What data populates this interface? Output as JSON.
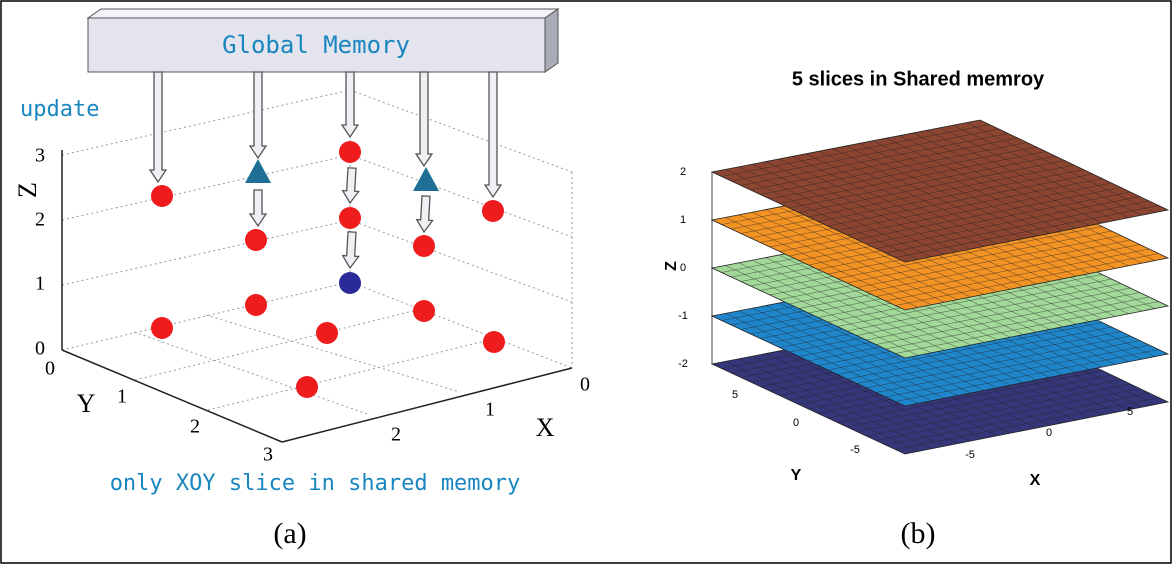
{
  "panel_a": {
    "header": "Global Memory",
    "update_label": "update",
    "caption_text": "only XOY slice in shared memory",
    "label": "(a)",
    "axes": {
      "z": {
        "label": "Z",
        "ticks": [
          0,
          1,
          2,
          3
        ]
      },
      "y": {
        "label": "Y",
        "ticks": [
          0,
          1,
          2,
          3
        ]
      },
      "x": {
        "label": "X",
        "ticks": [
          0,
          1,
          2
        ]
      }
    }
  },
  "panel_b": {
    "title": "5 slices in Shared memroy",
    "label": "(b)",
    "axes": {
      "z": {
        "label": "Z",
        "ticks": [
          -2,
          -1,
          0,
          1,
          2
        ]
      },
      "y": {
        "label": "Y",
        "ticks": [
          5,
          0,
          -5
        ]
      },
      "x": {
        "label": "X",
        "ticks": [
          5,
          0,
          -5
        ]
      }
    }
  }
}
